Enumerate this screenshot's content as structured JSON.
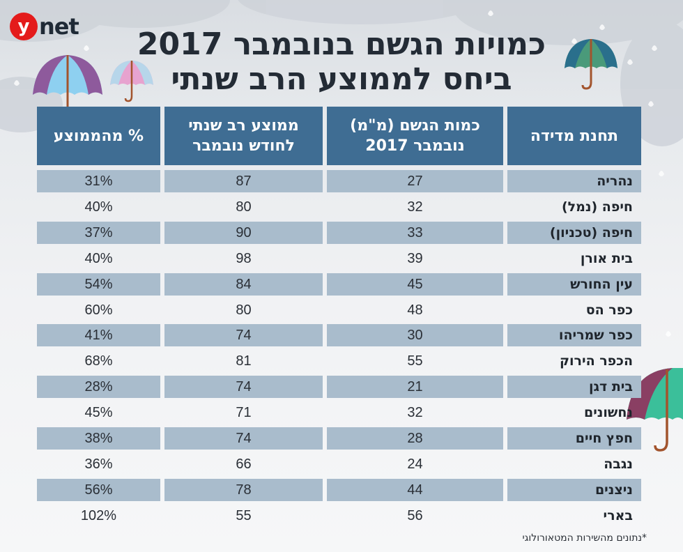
{
  "brand": {
    "logo_letter": "y",
    "logo_word": "net"
  },
  "title": {
    "line1": "כמויות הגשם בנובמבר 2017",
    "line2": "ביחס לממוצע הרב שנתי"
  },
  "colors": {
    "header": "#3f6d93",
    "row_shade": "#a9bccc",
    "logo_red": "#e41b1b",
    "text_dark": "#232b35"
  },
  "footnote": "*נתונים מהשירות המטאורולוגי",
  "chart_data": {
    "type": "table",
    "columns": [
      {
        "key": "station",
        "label": "תחנת מדידה"
      },
      {
        "key": "rain_mm",
        "label": "כמות הגשם (מ\"מ) נובמבר 2017"
      },
      {
        "key": "avg_mm",
        "label": "ממוצע רב שנתי לחודש נובמבר"
      },
      {
        "key": "pct",
        "label": "% מהממוצע"
      }
    ],
    "rows": [
      {
        "station": "נהריה",
        "rain_mm": 27,
        "avg_mm": 87,
        "pct": "31%"
      },
      {
        "station": "חיפה (נמל)",
        "rain_mm": 32,
        "avg_mm": 80,
        "pct": "40%"
      },
      {
        "station": "חיפה (טכניון)",
        "rain_mm": 33,
        "avg_mm": 90,
        "pct": "37%"
      },
      {
        "station": "בית אורן",
        "rain_mm": 39,
        "avg_mm": 98,
        "pct": "40%"
      },
      {
        "station": "עין החורש",
        "rain_mm": 45,
        "avg_mm": 84,
        "pct": "54%"
      },
      {
        "station": "כפר הס",
        "rain_mm": 48,
        "avg_mm": 80,
        "pct": "60%"
      },
      {
        "station": "כפר שמריהו",
        "rain_mm": 30,
        "avg_mm": 74,
        "pct": "41%"
      },
      {
        "station": "הכפר הירוק",
        "rain_mm": 55,
        "avg_mm": 81,
        "pct": "68%"
      },
      {
        "station": "בית דגן",
        "rain_mm": 21,
        "avg_mm": 74,
        "pct": "28%"
      },
      {
        "station": "נחשונים",
        "rain_mm": 32,
        "avg_mm": 71,
        "pct": "45%"
      },
      {
        "station": "חפץ חיים",
        "rain_mm": 28,
        "avg_mm": 74,
        "pct": "38%"
      },
      {
        "station": "נגבה",
        "rain_mm": 24,
        "avg_mm": 66,
        "pct": "36%"
      },
      {
        "station": "ניצנים",
        "rain_mm": 44,
        "avg_mm": 78,
        "pct": "56%"
      },
      {
        "station": "בארי",
        "rain_mm": 56,
        "avg_mm": 55,
        "pct": "102%"
      }
    ]
  }
}
